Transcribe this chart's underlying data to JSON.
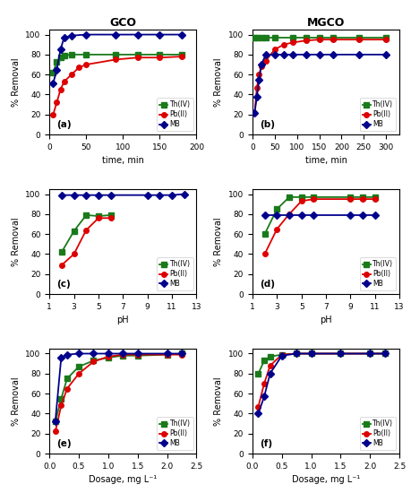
{
  "title_left": "GCO",
  "title_right": "MGCO",
  "colors": {
    "Th": "#1a7a1a",
    "Pb": "#dd0000",
    "MB": "#00008b"
  },
  "panel_a": {
    "label": "(a)",
    "xlabel": "time, min",
    "ylabel": "% Removal",
    "xlim": [
      0,
      200
    ],
    "ylim": [
      0,
      105
    ],
    "xticks": [
      0,
      50,
      100,
      150,
      200
    ],
    "yticks": [
      0,
      20,
      40,
      60,
      80,
      100
    ],
    "Th_x": [
      5,
      10,
      15,
      20,
      30,
      50,
      90,
      120,
      150,
      180
    ],
    "Th_y": [
      62,
      73,
      77,
      79,
      80,
      80,
      80,
      80,
      80,
      80
    ],
    "Pb_x": [
      5,
      10,
      15,
      20,
      30,
      40,
      50,
      90,
      120,
      150,
      180
    ],
    "Pb_y": [
      20,
      32,
      45,
      53,
      60,
      67,
      70,
      75,
      77,
      77,
      78
    ],
    "MB_x": [
      5,
      10,
      15,
      20,
      30,
      50,
      90,
      120,
      150,
      180
    ],
    "MB_y": [
      51,
      65,
      85,
      97,
      99,
      100,
      100,
      100,
      100,
      100
    ]
  },
  "panel_b": {
    "label": "(b)",
    "xlabel": "time, min",
    "ylabel": "% Removal",
    "xlim": [
      0,
      330
    ],
    "ylim": [
      0,
      105
    ],
    "xticks": [
      0,
      50,
      100,
      150,
      200,
      250,
      300
    ],
    "yticks": [
      0,
      20,
      40,
      60,
      80,
      100
    ],
    "Th_x": [
      5,
      10,
      20,
      30,
      50,
      90,
      120,
      150,
      180,
      240,
      300
    ],
    "Th_y": [
      97,
      97,
      97,
      97,
      97,
      97,
      97,
      97,
      97,
      97,
      97
    ],
    "Pb_x": [
      5,
      10,
      15,
      20,
      30,
      50,
      70,
      90,
      120,
      150,
      180,
      240,
      300
    ],
    "Pb_y": [
      22,
      47,
      60,
      68,
      74,
      85,
      90,
      92,
      94,
      95,
      95,
      95,
      95
    ],
    "MB_x": [
      5,
      10,
      15,
      20,
      30,
      50,
      70,
      90,
      120,
      150,
      180,
      240,
      300
    ],
    "MB_y": [
      22,
      38,
      55,
      70,
      80,
      80,
      80,
      80,
      80,
      80,
      80,
      80,
      80
    ]
  },
  "panel_c": {
    "label": "(c)",
    "xlabel": "pH",
    "ylabel": "% Removal",
    "xlim": [
      1,
      13
    ],
    "ylim": [
      0,
      105
    ],
    "xticks": [
      1,
      3,
      5,
      7,
      9,
      11,
      13
    ],
    "yticks": [
      0,
      20,
      40,
      60,
      80,
      100
    ],
    "Th_x": [
      2,
      3,
      4,
      5,
      6
    ],
    "Th_y": [
      42,
      63,
      79,
      78,
      79
    ],
    "Pb_x": [
      2,
      3,
      4,
      5,
      6
    ],
    "Pb_y": [
      29,
      40,
      64,
      76,
      76
    ],
    "MB_x": [
      2,
      3,
      4,
      5,
      6,
      9,
      10,
      11,
      12
    ],
    "MB_y": [
      99,
      99,
      99,
      99,
      99,
      99,
      99,
      99,
      100
    ]
  },
  "panel_d": {
    "label": "(d)",
    "xlabel": "pH",
    "ylabel": "% Removal",
    "xlim": [
      1,
      13
    ],
    "ylim": [
      0,
      105
    ],
    "xticks": [
      1,
      3,
      5,
      7,
      9,
      11,
      13
    ],
    "yticks": [
      0,
      20,
      40,
      60,
      80,
      100
    ],
    "Th_x": [
      2,
      3,
      4,
      5,
      6,
      9,
      10,
      11
    ],
    "Th_y": [
      60,
      85,
      97,
      97,
      97,
      97,
      97,
      97
    ],
    "Pb_x": [
      2,
      3,
      4,
      5,
      6,
      9,
      10,
      11
    ],
    "Pb_y": [
      40,
      65,
      80,
      93,
      95,
      95,
      95,
      95
    ],
    "MB_x": [
      2,
      3,
      4,
      5,
      6,
      9,
      10,
      11
    ],
    "MB_y": [
      79,
      79,
      79,
      79,
      79,
      79,
      79,
      79
    ]
  },
  "panel_e": {
    "label": "(e)",
    "xlabel": "Dosage, mg L⁻¹",
    "ylabel": "% Removal",
    "xlim": [
      0,
      2.5
    ],
    "ylim": [
      0,
      105
    ],
    "xticks": [
      0,
      0.5,
      1.0,
      1.5,
      2.0,
      2.5
    ],
    "yticks": [
      0,
      20,
      40,
      60,
      80,
      100
    ],
    "Th_x": [
      0.1,
      0.2,
      0.3,
      0.5,
      0.75,
      1.0,
      1.25,
      1.5,
      2.0,
      2.25
    ],
    "Th_y": [
      32,
      55,
      75,
      87,
      93,
      96,
      98,
      98,
      99,
      100
    ],
    "Pb_x": [
      0.1,
      0.2,
      0.3,
      0.5,
      0.75,
      1.0,
      1.25,
      1.5,
      2.0,
      2.25
    ],
    "Pb_y": [
      22,
      48,
      65,
      80,
      92,
      97,
      99,
      99,
      99,
      99
    ],
    "MB_x": [
      0.1,
      0.2,
      0.3,
      0.5,
      0.75,
      1.0,
      1.25,
      1.5,
      2.0,
      2.25
    ],
    "MB_y": [
      32,
      96,
      99,
      100,
      100,
      100,
      100,
      100,
      100,
      100
    ]
  },
  "panel_f": {
    "label": "(f)",
    "xlabel": "Dosage, mg L⁻¹",
    "ylabel": "% Removal",
    "xlim": [
      0,
      2.5
    ],
    "ylim": [
      0,
      105
    ],
    "xticks": [
      0,
      0.5,
      1.0,
      1.5,
      2.0,
      2.5
    ],
    "yticks": [
      0,
      20,
      40,
      60,
      80,
      100
    ],
    "Th_x": [
      0.1,
      0.2,
      0.3,
      0.5,
      0.75,
      1.0,
      1.5,
      2.0,
      2.25
    ],
    "Th_y": [
      80,
      93,
      97,
      99,
      100,
      100,
      100,
      100,
      100
    ],
    "Pb_x": [
      0.1,
      0.2,
      0.3,
      0.5,
      0.75,
      1.0,
      1.5,
      2.0,
      2.25
    ],
    "Pb_y": [
      47,
      70,
      88,
      99,
      100,
      100,
      100,
      100,
      100
    ],
    "MB_x": [
      0.1,
      0.2,
      0.3,
      0.5,
      0.75,
      1.0,
      1.5,
      2.0,
      2.25
    ],
    "MB_y": [
      40,
      57,
      80,
      98,
      100,
      100,
      100,
      100,
      100
    ]
  }
}
